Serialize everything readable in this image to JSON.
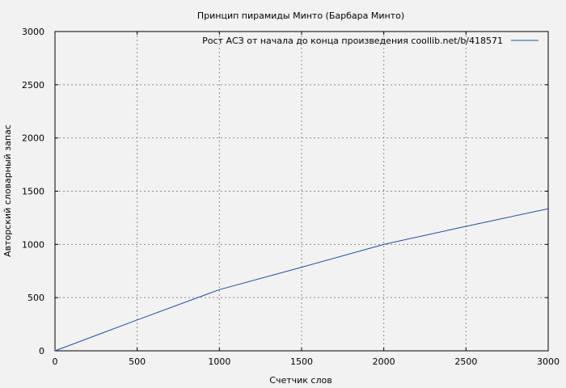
{
  "chart_data": {
    "type": "line",
    "title": "Принцип пирамиды Минто (Барбара Минто)",
    "xlabel": "Счетчик слов",
    "ylabel": "Авторский словарный запас",
    "xlim": [
      0,
      3000
    ],
    "ylim": [
      0,
      3000
    ],
    "x_ticks": [
      0,
      500,
      1000,
      1500,
      2000,
      2500,
      3000
    ],
    "y_ticks": [
      0,
      500,
      1000,
      1500,
      2000,
      2500,
      3000
    ],
    "x_tick_labels": [
      "0",
      "500",
      "1000",
      "1500",
      "2000",
      "2500",
      "3000"
    ],
    "y_tick_labels": [
      "0",
      "500",
      "1000",
      "1500",
      "2000",
      "2500",
      "3000"
    ],
    "grid": true,
    "legend_position": "top-right",
    "series": [
      {
        "name": "Рост АСЗ от начала до конца произведения coollib.net/b/418571",
        "color": "#1f4ea0",
        "x": [
          0,
          500,
          1000,
          1500,
          2000,
          2500,
          3000
        ],
        "y": [
          0,
          290,
          575,
          785,
          1000,
          1170,
          1335
        ]
      }
    ]
  }
}
